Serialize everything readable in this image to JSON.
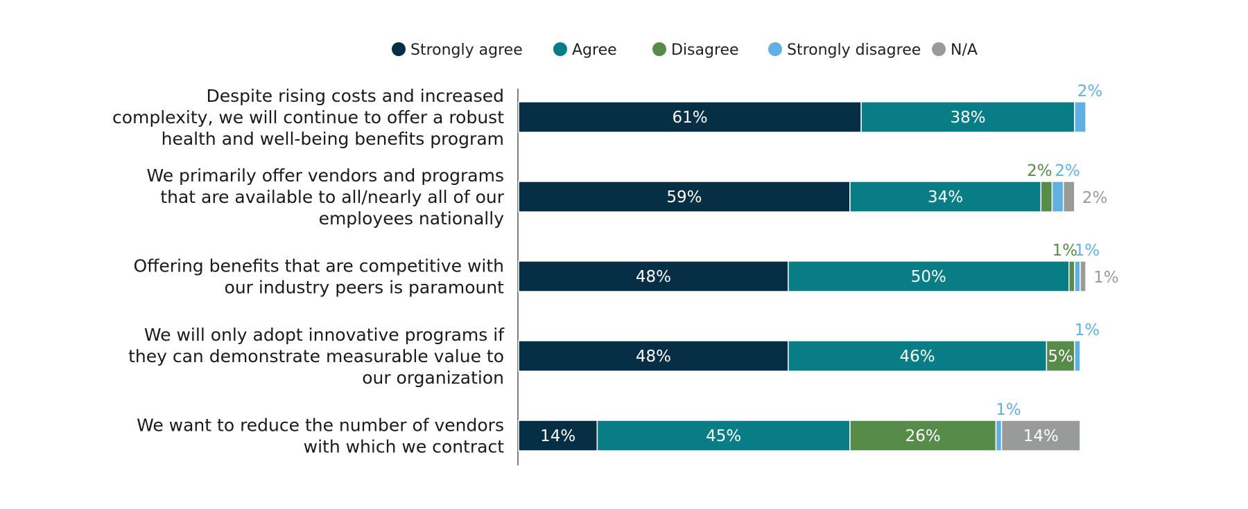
{
  "chart_data": {
    "type": "stacked-bar-horizontal",
    "title": "",
    "xlim": [
      0,
      100
    ],
    "legend_position": "top",
    "series": [
      {
        "name": "Strongly agree",
        "color": "#062f45",
        "values": [
          61,
          59,
          48,
          48,
          14
        ]
      },
      {
        "name": "Agree",
        "color": "#087d86",
        "values": [
          38,
          34,
          50,
          46,
          45
        ]
      },
      {
        "name": "Disagree",
        "color": "#568b4a",
        "values": [
          0,
          2,
          1,
          5,
          26
        ]
      },
      {
        "name": "Strongly disagree",
        "color": "#62b0e2",
        "values": [
          2,
          2,
          1,
          1,
          1
        ]
      },
      {
        "name": "N/A",
        "color": "#999b9b",
        "values": [
          0,
          2,
          1,
          0,
          14
        ]
      }
    ],
    "categories": [
      [
        "Despite rising costs and increased",
        "complexity, we will continue to offer a robust",
        "health and well-being benefits program"
      ],
      [
        "We primarily offer vendors and programs",
        "that are available to all/nearly all of our",
        "employees nationally"
      ],
      [
        "Offering benefits that are competitive with",
        "our industry peers is paramount"
      ],
      [
        "We will only adopt innovative programs if",
        "they can demonstrate measurable value to",
        "our organization"
      ],
      [
        "We want to reduce the number of vendors",
        "with which we contract"
      ]
    ],
    "value_labels": [
      [
        "61%",
        "38%",
        "",
        "2%",
        ""
      ],
      [
        "59%",
        "34%",
        "2%",
        "2%",
        "2%"
      ],
      [
        "48%",
        "50%",
        "1%",
        "1%",
        "1%"
      ],
      [
        "48%",
        "46%",
        "5%",
        "1%",
        ""
      ],
      [
        "14%",
        "45%",
        "26%",
        "1%",
        "14%"
      ]
    ]
  }
}
